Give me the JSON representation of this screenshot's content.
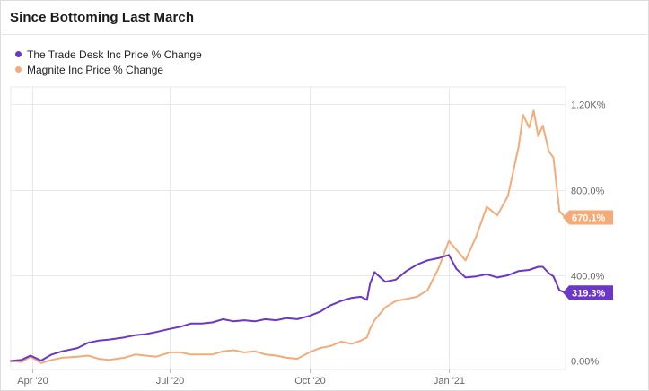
{
  "colors": {
    "series1": "#6a37c9",
    "series2": "#f5ab78",
    "grid": "#e8e8e8",
    "axis_text": "#666666"
  },
  "chart_data": {
    "type": "line",
    "title": "Since Bottoming Last March",
    "xlabel": "",
    "ylabel": "",
    "x_ticks": [
      "Apr '20",
      "Jul '20",
      "Oct '20",
      "Jan '21"
    ],
    "y_ticks": [
      "0.00%",
      "400.0%",
      "800.0%",
      "1.20K%"
    ],
    "ylim": [
      -40,
      1280
    ],
    "grid": true,
    "legend_position": "top-left",
    "series": [
      {
        "name": "The Trade Desk Inc Price % Change",
        "color": "#6a37c9",
        "last_label": "319.3%",
        "last_value": 319.3,
        "points": [
          [
            "2020-03-18",
            0
          ],
          [
            "2020-03-25",
            5
          ],
          [
            "2020-03-31",
            25
          ],
          [
            "2020-04-07",
            2
          ],
          [
            "2020-04-14",
            30
          ],
          [
            "2020-04-21",
            45
          ],
          [
            "2020-05-01",
            60
          ],
          [
            "2020-05-08",
            85
          ],
          [
            "2020-05-15",
            95
          ],
          [
            "2020-05-22",
            100
          ],
          [
            "2020-06-01",
            110
          ],
          [
            "2020-06-08",
            120
          ],
          [
            "2020-06-15",
            125
          ],
          [
            "2020-06-22",
            135
          ],
          [
            "2020-07-01",
            150
          ],
          [
            "2020-07-08",
            160
          ],
          [
            "2020-07-15",
            175
          ],
          [
            "2020-07-22",
            175
          ],
          [
            "2020-07-29",
            180
          ],
          [
            "2020-08-05",
            195
          ],
          [
            "2020-08-12",
            185
          ],
          [
            "2020-08-19",
            190
          ],
          [
            "2020-08-26",
            185
          ],
          [
            "2020-09-02",
            195
          ],
          [
            "2020-09-09",
            190
          ],
          [
            "2020-09-16",
            200
          ],
          [
            "2020-09-23",
            195
          ],
          [
            "2020-10-01",
            210
          ],
          [
            "2020-10-08",
            230
          ],
          [
            "2020-10-15",
            260
          ],
          [
            "2020-10-22",
            280
          ],
          [
            "2020-10-29",
            295
          ],
          [
            "2020-11-04",
            300
          ],
          [
            "2020-11-08",
            285
          ],
          [
            "2020-11-10",
            360
          ],
          [
            "2020-11-13",
            415
          ],
          [
            "2020-11-20",
            370
          ],
          [
            "2020-11-27",
            380
          ],
          [
            "2020-12-04",
            420
          ],
          [
            "2020-12-11",
            450
          ],
          [
            "2020-12-18",
            470
          ],
          [
            "2020-12-25",
            480
          ],
          [
            "2021-01-01",
            495
          ],
          [
            "2021-01-06",
            430
          ],
          [
            "2021-01-12",
            390
          ],
          [
            "2021-01-19",
            395
          ],
          [
            "2021-01-26",
            405
          ],
          [
            "2021-02-02",
            390
          ],
          [
            "2021-02-09",
            400
          ],
          [
            "2021-02-16",
            420
          ],
          [
            "2021-02-23",
            425
          ],
          [
            "2021-03-01",
            440
          ],
          [
            "2021-03-04",
            440
          ],
          [
            "2021-03-08",
            410
          ],
          [
            "2021-03-11",
            395
          ],
          [
            "2021-03-15",
            330
          ],
          [
            "2021-03-19",
            319.3
          ]
        ]
      },
      {
        "name": "Magnite Inc Price % Change",
        "color": "#f5ab78",
        "last_label": "670.1%",
        "last_value": 670.1,
        "points": [
          [
            "2020-03-18",
            0
          ],
          [
            "2020-03-25",
            -5
          ],
          [
            "2020-03-31",
            20
          ],
          [
            "2020-04-07",
            -10
          ],
          [
            "2020-04-14",
            5
          ],
          [
            "2020-04-21",
            15
          ],
          [
            "2020-05-01",
            20
          ],
          [
            "2020-05-08",
            25
          ],
          [
            "2020-05-15",
            10
          ],
          [
            "2020-05-22",
            5
          ],
          [
            "2020-06-01",
            15
          ],
          [
            "2020-06-08",
            30
          ],
          [
            "2020-06-15",
            25
          ],
          [
            "2020-06-22",
            20
          ],
          [
            "2020-07-01",
            40
          ],
          [
            "2020-07-08",
            40
          ],
          [
            "2020-07-15",
            30
          ],
          [
            "2020-07-22",
            30
          ],
          [
            "2020-07-29",
            30
          ],
          [
            "2020-08-05",
            45
          ],
          [
            "2020-08-12",
            50
          ],
          [
            "2020-08-19",
            40
          ],
          [
            "2020-08-26",
            45
          ],
          [
            "2020-09-02",
            30
          ],
          [
            "2020-09-09",
            25
          ],
          [
            "2020-09-16",
            15
          ],
          [
            "2020-09-23",
            10
          ],
          [
            "2020-10-01",
            40
          ],
          [
            "2020-10-08",
            60
          ],
          [
            "2020-10-15",
            70
          ],
          [
            "2020-10-22",
            90
          ],
          [
            "2020-10-29",
            80
          ],
          [
            "2020-11-04",
            95
          ],
          [
            "2020-11-08",
            110
          ],
          [
            "2020-11-10",
            150
          ],
          [
            "2020-11-13",
            190
          ],
          [
            "2020-11-20",
            250
          ],
          [
            "2020-11-27",
            280
          ],
          [
            "2020-12-04",
            290
          ],
          [
            "2020-12-11",
            300
          ],
          [
            "2020-12-18",
            330
          ],
          [
            "2020-12-25",
            430
          ],
          [
            "2021-01-01",
            560
          ],
          [
            "2021-01-06",
            520
          ],
          [
            "2021-01-12",
            470
          ],
          [
            "2021-01-19",
            580
          ],
          [
            "2021-01-26",
            720
          ],
          [
            "2021-02-02",
            680
          ],
          [
            "2021-02-09",
            770
          ],
          [
            "2021-02-16",
            1000
          ],
          [
            "2021-02-19",
            1150
          ],
          [
            "2021-02-23",
            1090
          ],
          [
            "2021-02-26",
            1170
          ],
          [
            "2021-03-01",
            1050
          ],
          [
            "2021-03-04",
            1100
          ],
          [
            "2021-03-08",
            980
          ],
          [
            "2021-03-11",
            950
          ],
          [
            "2021-03-15",
            700
          ],
          [
            "2021-03-19",
            670.1
          ]
        ]
      }
    ]
  }
}
